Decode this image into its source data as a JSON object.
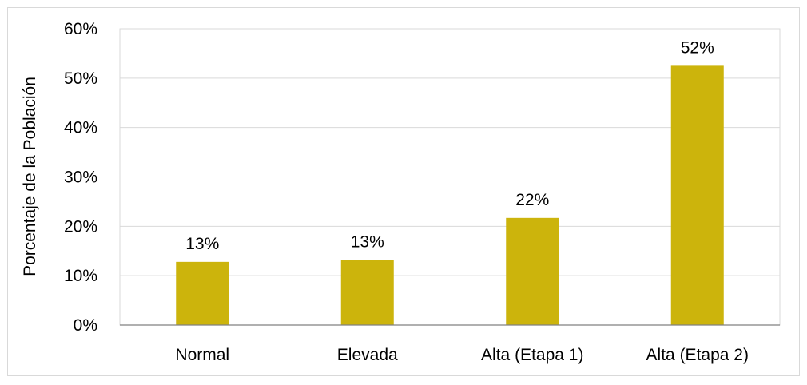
{
  "chart_data": {
    "type": "bar",
    "title": "",
    "xlabel": "",
    "ylabel": "Porcentaje de la Población",
    "categories": [
      "Normal",
      "Elevada",
      "Alta (Etapa 1)",
      "Alta (Etapa 2)"
    ],
    "values": [
      12.8,
      13.2,
      21.7,
      52.5
    ],
    "data_labels": [
      "13%",
      "13%",
      "22%",
      "52%"
    ],
    "ylim": [
      0,
      60
    ],
    "yticks": [
      0,
      10,
      20,
      30,
      40,
      50,
      60
    ],
    "ytick_labels": [
      "0%",
      "10%",
      "20%",
      "30%",
      "40%",
      "50%",
      "60%"
    ],
    "grid": true,
    "bar_color": "#CCB40C",
    "grid_color": "#D9D9D9",
    "axis_color": "#808080"
  }
}
